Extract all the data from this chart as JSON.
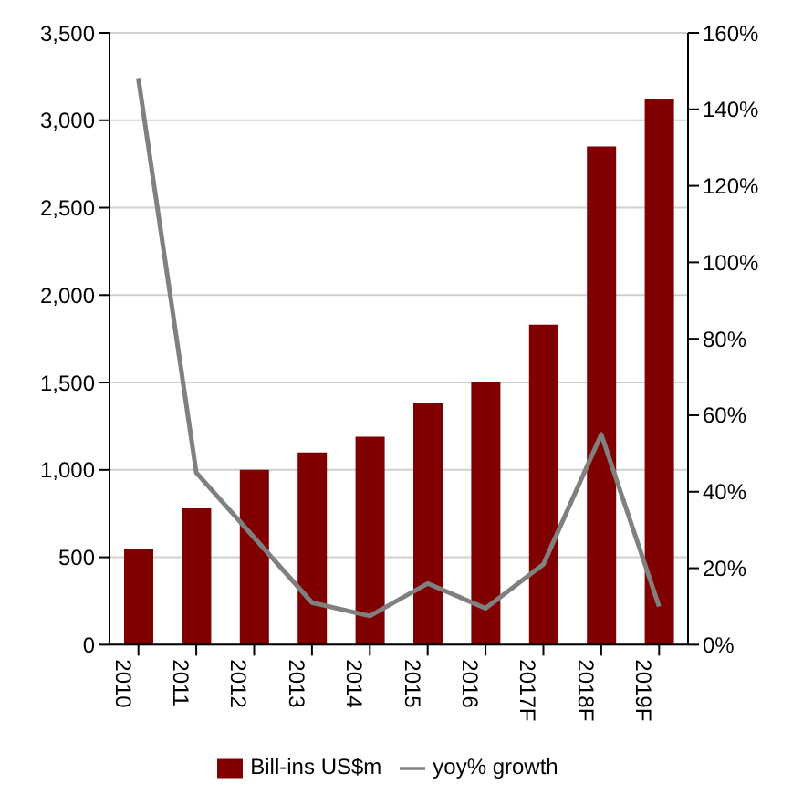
{
  "chart_data": {
    "type": "bar",
    "categories": [
      "2010",
      "2011",
      "2012",
      "2013",
      "2014",
      "2015",
      "2016",
      "2017F",
      "2018F",
      "2019F"
    ],
    "series": [
      {
        "name": "Bill-ins US$m",
        "color": "#800000",
        "values": [
          550,
          780,
          1000,
          1100,
          1190,
          1380,
          1500,
          1830,
          2850,
          3120
        ]
      },
      {
        "name": "yoy% growth",
        "type": "line",
        "axis": "y2",
        "color": "#808080",
        "values": [
          148,
          45,
          28,
          11,
          7.5,
          16,
          9.5,
          21,
          55,
          10
        ]
      }
    ],
    "ylim": [
      0,
      3500
    ],
    "yticks": [
      {
        "value": 0,
        "label": "0"
      },
      {
        "value": 500,
        "label": "500"
      },
      {
        "value": 1000,
        "label": "1,000"
      },
      {
        "value": 1500,
        "label": "1,500"
      },
      {
        "value": 2000,
        "label": "2,000"
      },
      {
        "value": 2500,
        "label": "2,500"
      },
      {
        "value": 3000,
        "label": "3,000"
      },
      {
        "value": 3500,
        "label": "3,500"
      }
    ],
    "y2lim": [
      0,
      160
    ],
    "y2ticks": [
      {
        "value": 0,
        "label": "0%"
      },
      {
        "value": 20,
        "label": "20%"
      },
      {
        "value": 40,
        "label": "40%"
      },
      {
        "value": 60,
        "label": "60%"
      },
      {
        "value": 80,
        "label": "80%"
      },
      {
        "value": 100,
        "label": "100%"
      },
      {
        "value": 120,
        "label": "120%"
      },
      {
        "value": 140,
        "label": "140%"
      },
      {
        "value": 160,
        "label": "160%"
      }
    ],
    "grid": "y",
    "legend": "bottom",
    "marker": "none",
    "line_style": "solid"
  }
}
